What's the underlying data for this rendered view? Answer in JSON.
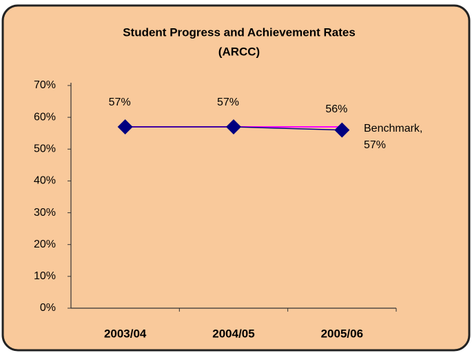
{
  "chart_data": {
    "type": "line",
    "title": [
      "Student Progress and Achievement Rates",
      "(ARCC)"
    ],
    "categories": [
      "2003/04",
      "2004/05",
      "2005/06"
    ],
    "series": [
      {
        "color": "#000080",
        "values": [
          57,
          57,
          56
        ],
        "value_labels": [
          "57%",
          "57%",
          "56%"
        ]
      },
      {
        "color": "#ff00ff",
        "values": [
          57,
          57,
          57
        ]
      }
    ],
    "annotation": [
      "Benchmark,",
      "57%"
    ],
    "ylim": [
      0,
      70
    ],
    "yticks": [
      {
        "value": 0,
        "label": "0%"
      },
      {
        "value": 10,
        "label": "10%"
      },
      {
        "value": 20,
        "label": "20%"
      },
      {
        "value": 30,
        "label": "30%"
      },
      {
        "value": 40,
        "label": "40%"
      },
      {
        "value": 50,
        "label": "50%"
      },
      {
        "value": 60,
        "label": "60%"
      },
      {
        "value": 70,
        "label": "70%"
      }
    ],
    "grid": false
  }
}
